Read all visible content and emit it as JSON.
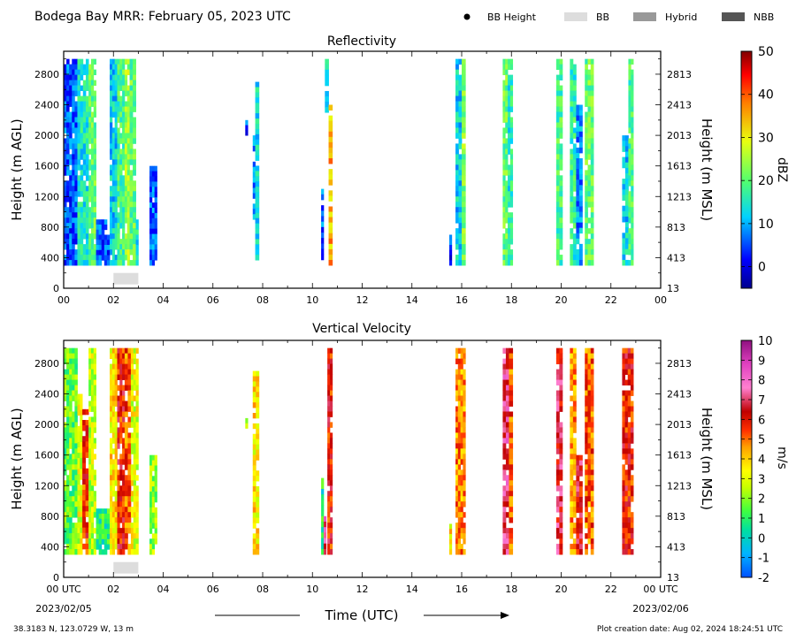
{
  "header": {
    "title": "Bodega Bay MRR:  February 05, 2023 UTC",
    "legend": [
      {
        "label": "BB Height",
        "kind": "dot",
        "color": "#000000"
      },
      {
        "label": "BB",
        "kind": "box",
        "color": "#dddddd"
      },
      {
        "label": "Hybrid",
        "kind": "box",
        "color": "#999999"
      },
      {
        "label": "NBB",
        "kind": "box",
        "color": "#555555"
      }
    ]
  },
  "xaxis": {
    "label": "Time (UTC)",
    "ticks": [
      "00",
      "02",
      "04",
      "06",
      "08",
      "10",
      "12",
      "14",
      "16",
      "18",
      "20",
      "22",
      "00"
    ],
    "bottom_ticks": [
      "00 UTC",
      "02",
      "04",
      "06",
      "08",
      "10",
      "12",
      "14",
      "16",
      "18",
      "20",
      "22",
      "00 UTC"
    ],
    "start_date": "2023/02/05",
    "end_date": "2023/02/06"
  },
  "footer": {
    "location": "38.3183 N, 123.0729 W, 13 m",
    "created": "Plot creation date: Aug 02, 2024 18:24:51 UTC"
  },
  "chart_data": [
    {
      "type": "heatmap",
      "title": "Reflectivity",
      "ylabel": "Height (m AGL)",
      "y2label": "Height (m MSL)",
      "xlim": [
        0,
        24
      ],
      "ylim": [
        0,
        3100
      ],
      "yticks": [
        0,
        400,
        800,
        1200,
        1600,
        2000,
        2400,
        2800
      ],
      "y2ticks": [
        13,
        413,
        813,
        1213,
        1613,
        2013,
        2413,
        2813
      ],
      "colorbar": {
        "label": "dBZ",
        "min": -5,
        "max": 50,
        "ticks": [
          0,
          10,
          20,
          30,
          40,
          50
        ]
      },
      "bright_band_boxes": [
        {
          "x0": 2.0,
          "x1": 3.0,
          "y0": 50,
          "y1": 200
        }
      ],
      "echo_columns": [
        {
          "x0": 0.0,
          "x1": 0.55,
          "y0": 300,
          "y1": 3000,
          "dbz": 5
        },
        {
          "x0": 0.55,
          "x1": 1.0,
          "y0": 300,
          "y1": 3000,
          "dbz": 14
        },
        {
          "x0": 1.0,
          "x1": 1.3,
          "y0": 300,
          "y1": 3000,
          "dbz": 20
        },
        {
          "x0": 1.3,
          "x1": 1.85,
          "y0": 300,
          "y1": 900,
          "dbz": 5
        },
        {
          "x0": 1.85,
          "x1": 2.15,
          "y0": 300,
          "y1": 3000,
          "dbz": 12
        },
        {
          "x0": 2.15,
          "x1": 2.45,
          "y0": 300,
          "y1": 3000,
          "dbz": 18
        },
        {
          "x0": 2.45,
          "x1": 2.65,
          "y0": 300,
          "y1": 3000,
          "dbz": 24
        },
        {
          "x0": 2.65,
          "x1": 2.9,
          "y0": 300,
          "y1": 3000,
          "dbz": 20
        },
        {
          "x0": 2.9,
          "x1": 3.0,
          "y0": 300,
          "y1": 900,
          "dbz": 14
        },
        {
          "x0": 3.45,
          "x1": 3.75,
          "y0": 300,
          "y1": 1600,
          "dbz": 6
        },
        {
          "x0": 7.3,
          "x1": 7.4,
          "y0": 2000,
          "y1": 2200,
          "dbz": 4
        },
        {
          "x0": 7.6,
          "x1": 7.7,
          "y0": 900,
          "y1": 2000,
          "dbz": 7
        },
        {
          "x0": 7.7,
          "x1": 7.85,
          "y0": 300,
          "y1": 2700,
          "dbz": 13
        },
        {
          "x0": 10.35,
          "x1": 10.45,
          "y0": 300,
          "y1": 1300,
          "dbz": 5
        },
        {
          "x0": 10.5,
          "x1": 10.65,
          "y0": 2300,
          "y1": 3000,
          "dbz": 14
        },
        {
          "x0": 10.65,
          "x1": 10.8,
          "y0": 300,
          "y1": 2400,
          "dbz": 34
        },
        {
          "x0": 15.5,
          "x1": 15.6,
          "y0": 300,
          "y1": 700,
          "dbz": 3
        },
        {
          "x0": 15.75,
          "x1": 16.0,
          "y0": 300,
          "y1": 3000,
          "dbz": 12
        },
        {
          "x0": 16.0,
          "x1": 16.15,
          "y0": 300,
          "y1": 3000,
          "dbz": 22
        },
        {
          "x0": 17.65,
          "x1": 17.85,
          "y0": 300,
          "y1": 3000,
          "dbz": 20
        },
        {
          "x0": 17.85,
          "x1": 18.05,
          "y0": 300,
          "y1": 3000,
          "dbz": 15
        },
        {
          "x0": 19.8,
          "x1": 20.05,
          "y0": 300,
          "y1": 3000,
          "dbz": 18
        },
        {
          "x0": 20.35,
          "x1": 20.6,
          "y0": 300,
          "y1": 3000,
          "dbz": 16
        },
        {
          "x0": 20.6,
          "x1": 20.85,
          "y0": 300,
          "y1": 2400,
          "dbz": 8
        },
        {
          "x0": 20.95,
          "x1": 21.3,
          "y0": 300,
          "y1": 3000,
          "dbz": 20
        },
        {
          "x0": 22.45,
          "x1": 22.7,
          "y0": 300,
          "y1": 2000,
          "dbz": 12
        },
        {
          "x0": 22.7,
          "x1": 22.9,
          "y0": 300,
          "y1": 3000,
          "dbz": 18
        }
      ]
    },
    {
      "type": "heatmap",
      "title": "Vertical Velocity",
      "ylabel": "Height (m AGL)",
      "y2label": "Height (m MSL)",
      "xlim": [
        0,
        24
      ],
      "ylim": [
        0,
        3100
      ],
      "yticks": [
        0,
        400,
        800,
        1200,
        1600,
        2000,
        2400,
        2800
      ],
      "y2ticks": [
        13,
        413,
        813,
        1213,
        1613,
        2013,
        2413,
        2813
      ],
      "colorbar": {
        "label": "m/s",
        "min": -2,
        "max": 10,
        "ticks": [
          -2,
          -1,
          0,
          1,
          2,
          3,
          4,
          5,
          6,
          7,
          8,
          9,
          10
        ]
      },
      "bright_band_boxes": [
        {
          "x0": 2.0,
          "x1": 3.0,
          "y0": 50,
          "y1": 200
        }
      ],
      "echo_columns": [
        {
          "x0": 0.0,
          "x1": 0.55,
          "y0": 300,
          "y1": 3000,
          "w": 1.5
        },
        {
          "x0": 0.55,
          "x1": 0.75,
          "y0": 300,
          "y1": 2400,
          "w": 2.8
        },
        {
          "x0": 0.75,
          "x1": 1.0,
          "y0": 300,
          "y1": 2200,
          "w": 5.5
        },
        {
          "x0": 1.0,
          "x1": 1.3,
          "y0": 300,
          "y1": 3000,
          "w": 2.5
        },
        {
          "x0": 1.3,
          "x1": 1.85,
          "y0": 300,
          "y1": 900,
          "w": 0.8
        },
        {
          "x0": 1.85,
          "x1": 2.15,
          "y0": 300,
          "y1": 3000,
          "w": 3.5
        },
        {
          "x0": 2.15,
          "x1": 2.45,
          "y0": 300,
          "y1": 3000,
          "w": 5.8
        },
        {
          "x0": 2.45,
          "x1": 2.7,
          "y0": 300,
          "y1": 3000,
          "w": 5.0
        },
        {
          "x0": 2.7,
          "x1": 3.0,
          "y0": 300,
          "y1": 3000,
          "w": 3.0
        },
        {
          "x0": 3.45,
          "x1": 3.75,
          "y0": 300,
          "y1": 1600,
          "w": 2.0
        },
        {
          "x0": 7.3,
          "x1": 7.4,
          "y0": 1950,
          "y1": 2150,
          "w": 1.6
        },
        {
          "x0": 7.6,
          "x1": 7.85,
          "y0": 300,
          "y1": 2700,
          "w": 3.5
        },
        {
          "x0": 10.35,
          "x1": 10.45,
          "y0": 300,
          "y1": 1300,
          "w": 0.5
        },
        {
          "x0": 10.45,
          "x1": 10.55,
          "y0": 300,
          "y1": 800,
          "w": 7.5
        },
        {
          "x0": 10.6,
          "x1": 10.8,
          "y0": 300,
          "y1": 3000,
          "w": 5.8
        },
        {
          "x0": 15.5,
          "x1": 15.6,
          "y0": 300,
          "y1": 700,
          "w": 3.5
        },
        {
          "x0": 15.75,
          "x1": 16.15,
          "y0": 300,
          "y1": 3000,
          "w": 4.6
        },
        {
          "x0": 17.65,
          "x1": 17.9,
          "y0": 300,
          "y1": 3000,
          "w": 7.2
        },
        {
          "x0": 17.9,
          "x1": 18.05,
          "y0": 300,
          "y1": 3000,
          "w": 5.2
        },
        {
          "x0": 19.8,
          "x1": 20.05,
          "y0": 300,
          "y1": 3000,
          "w": 6.5
        },
        {
          "x0": 20.35,
          "x1": 20.6,
          "y0": 300,
          "y1": 3000,
          "w": 4.5
        },
        {
          "x0": 20.6,
          "x1": 20.85,
          "y0": 300,
          "y1": 1600,
          "w": 6.2
        },
        {
          "x0": 20.95,
          "x1": 21.3,
          "y0": 300,
          "y1": 3000,
          "w": 5.0
        },
        {
          "x0": 22.45,
          "x1": 22.9,
          "y0": 300,
          "y1": 3000,
          "w": 5.8
        }
      ]
    }
  ]
}
